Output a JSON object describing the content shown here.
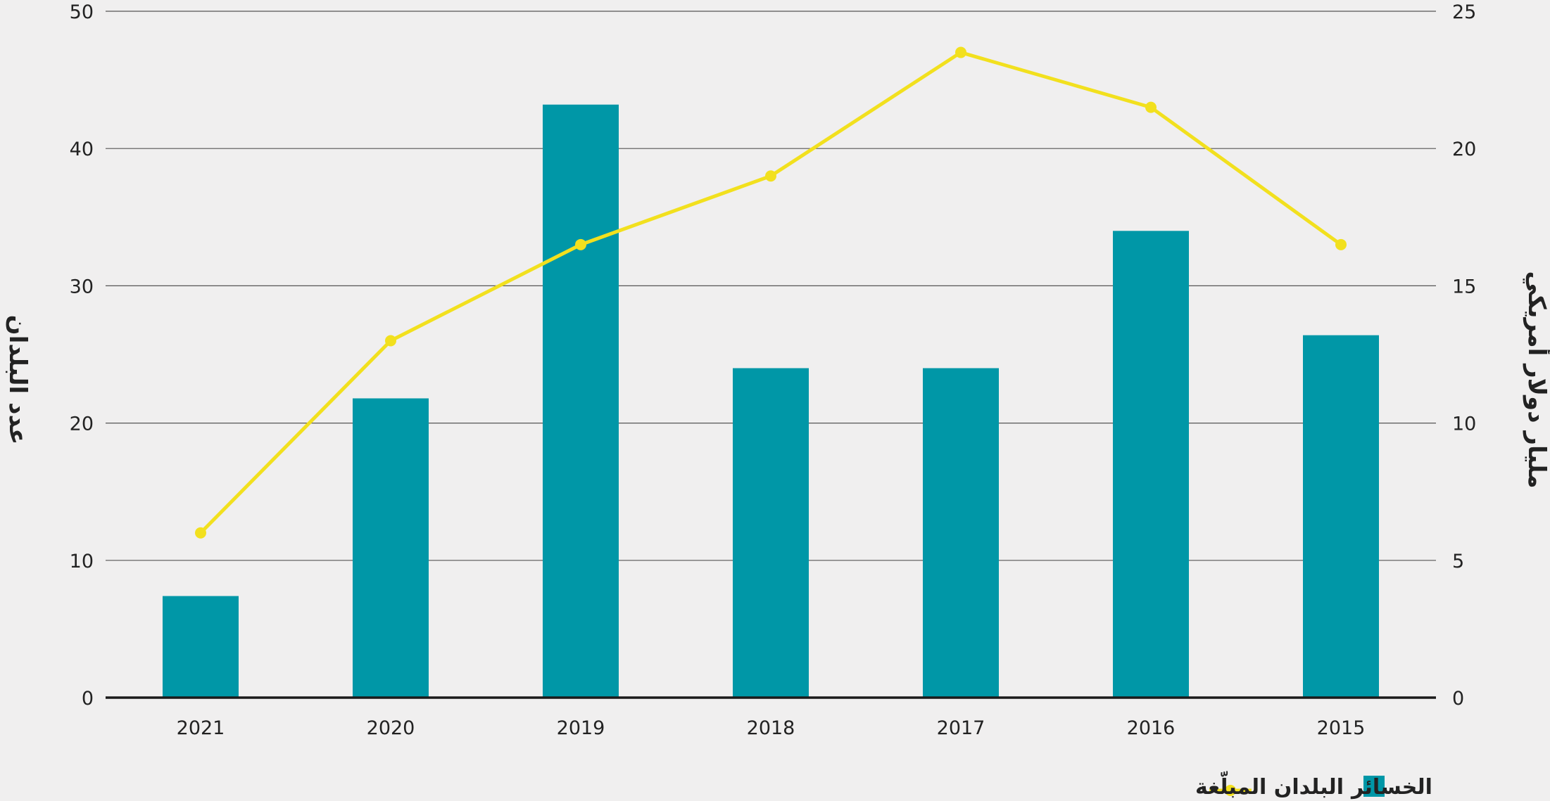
{
  "chart_data": {
    "type": "bar",
    "categories": [
      "2021",
      "2020",
      "2019",
      "2018",
      "2017",
      "2016",
      "2015"
    ],
    "series": [
      {
        "name": "الخسائر",
        "type": "bar",
        "axis": "right",
        "values": [
          3.7,
          10.9,
          21.6,
          12.0,
          12.0,
          17.0,
          13.2
        ],
        "color": "#0097a7"
      },
      {
        "name": "البلدان المبلّغة",
        "type": "line",
        "axis": "left",
        "values": [
          12,
          26,
          33,
          38,
          47,
          43,
          33
        ],
        "color": "#f2e01e"
      }
    ],
    "yleft": {
      "label": "عدد البلدان",
      "ylim": [
        0,
        50
      ],
      "ticks": [
        "0",
        "10",
        "20",
        "30",
        "40",
        "50"
      ]
    },
    "yright": {
      "label": "مليار دولار أمريكي",
      "ylim": [
        0,
        25
      ],
      "ticks": [
        "0",
        "5",
        "10",
        "15",
        "20",
        "25"
      ]
    },
    "grid": true,
    "legend_position": "bottom-right"
  },
  "colors": {
    "background": "#f0efef",
    "bar": "#0097a7",
    "line": "#f2e01e",
    "grid": "#555555",
    "axis": "#1a1a1a"
  }
}
